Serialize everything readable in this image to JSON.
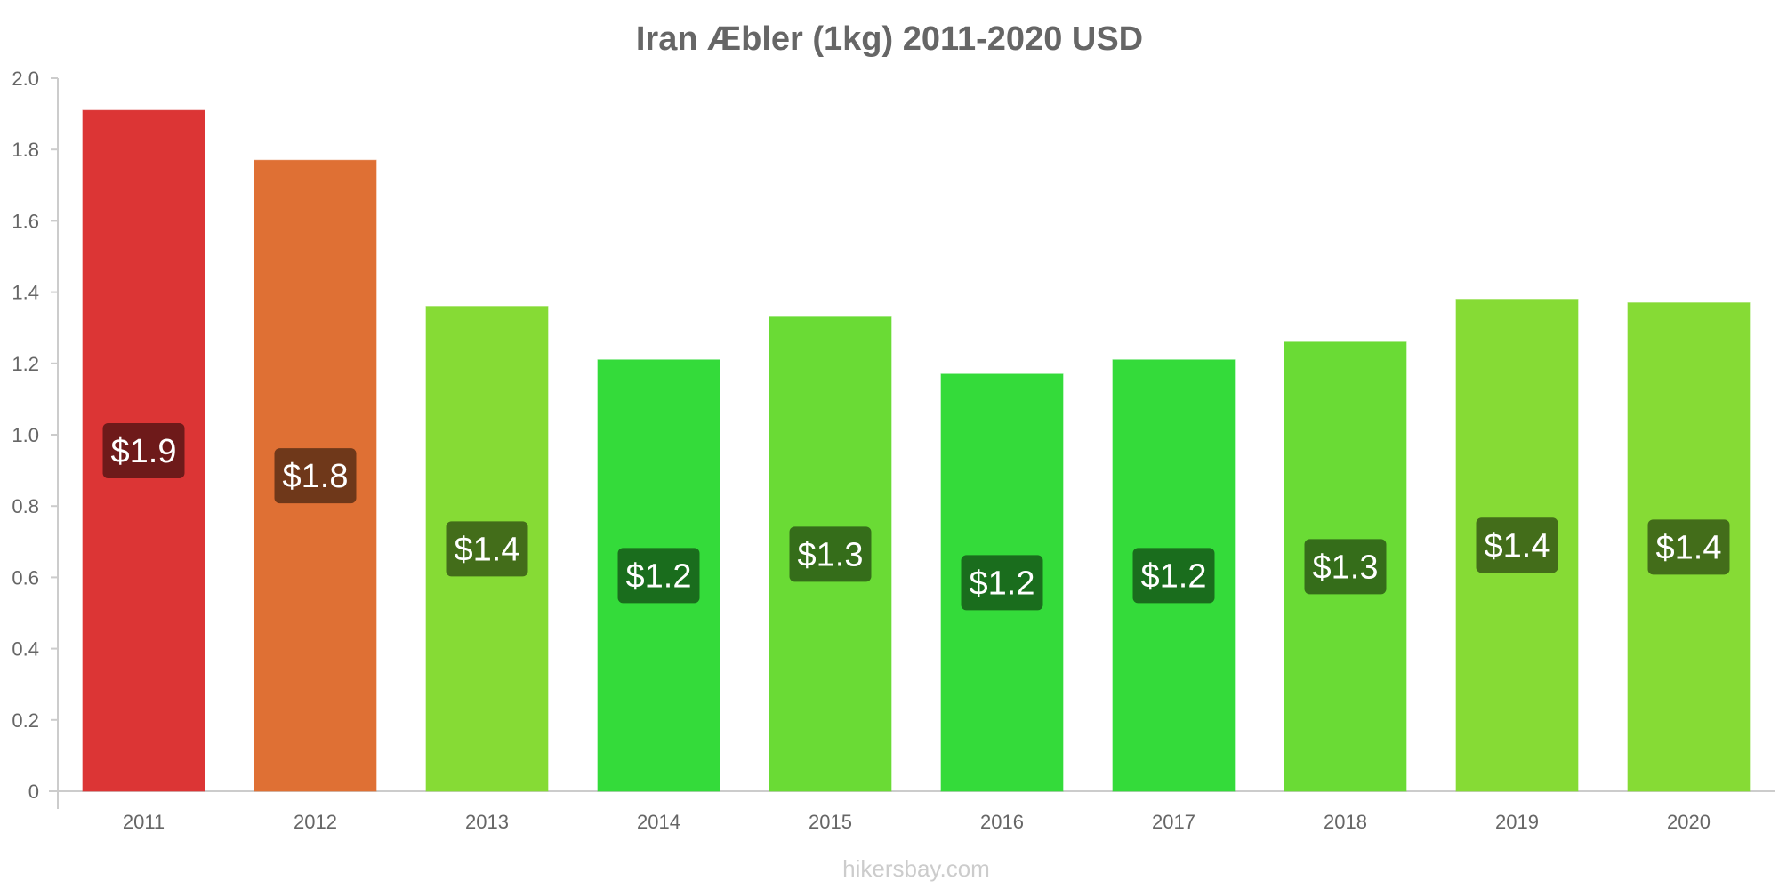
{
  "chart_data": {
    "type": "bar",
    "title": "Iran Æbler (1kg) 2011-2020 USD",
    "categories": [
      "2011",
      "2012",
      "2013",
      "2014",
      "2015",
      "2016",
      "2017",
      "2018",
      "2019",
      "2020"
    ],
    "values": [
      1.91,
      1.77,
      1.36,
      1.21,
      1.33,
      1.17,
      1.21,
      1.26,
      1.38,
      1.37
    ],
    "data_labels": [
      "$1.9",
      "$1.8",
      "$1.4",
      "$1.2",
      "$1.3",
      "$1.2",
      "$1.2",
      "$1.3",
      "$1.4",
      "$1.4"
    ],
    "bar_colors": [
      "#dc3535",
      "#df7034",
      "#86db35",
      "#34db3a",
      "#6adb35",
      "#34db3a",
      "#34db3a",
      "#6adb35",
      "#86db35",
      "#86db35"
    ],
    "label_colors": [
      "#6e1a1a",
      "#6f381a",
      "#436d1a",
      "#1a6d1d",
      "#356d1a",
      "#1a6d1d",
      "#1a6d1d",
      "#356d1a",
      "#436d1a",
      "#436d1a"
    ],
    "yticks": [
      "0",
      "0.2",
      "0.4",
      "0.6",
      "0.8",
      "1.0",
      "1.2",
      "1.4",
      "1.6",
      "1.8",
      "2.0"
    ],
    "ylim": [
      0,
      2.0
    ],
    "xlabel": "",
    "ylabel": "",
    "grid": false,
    "legend": "none"
  },
  "watermark": "hikersbay.com"
}
